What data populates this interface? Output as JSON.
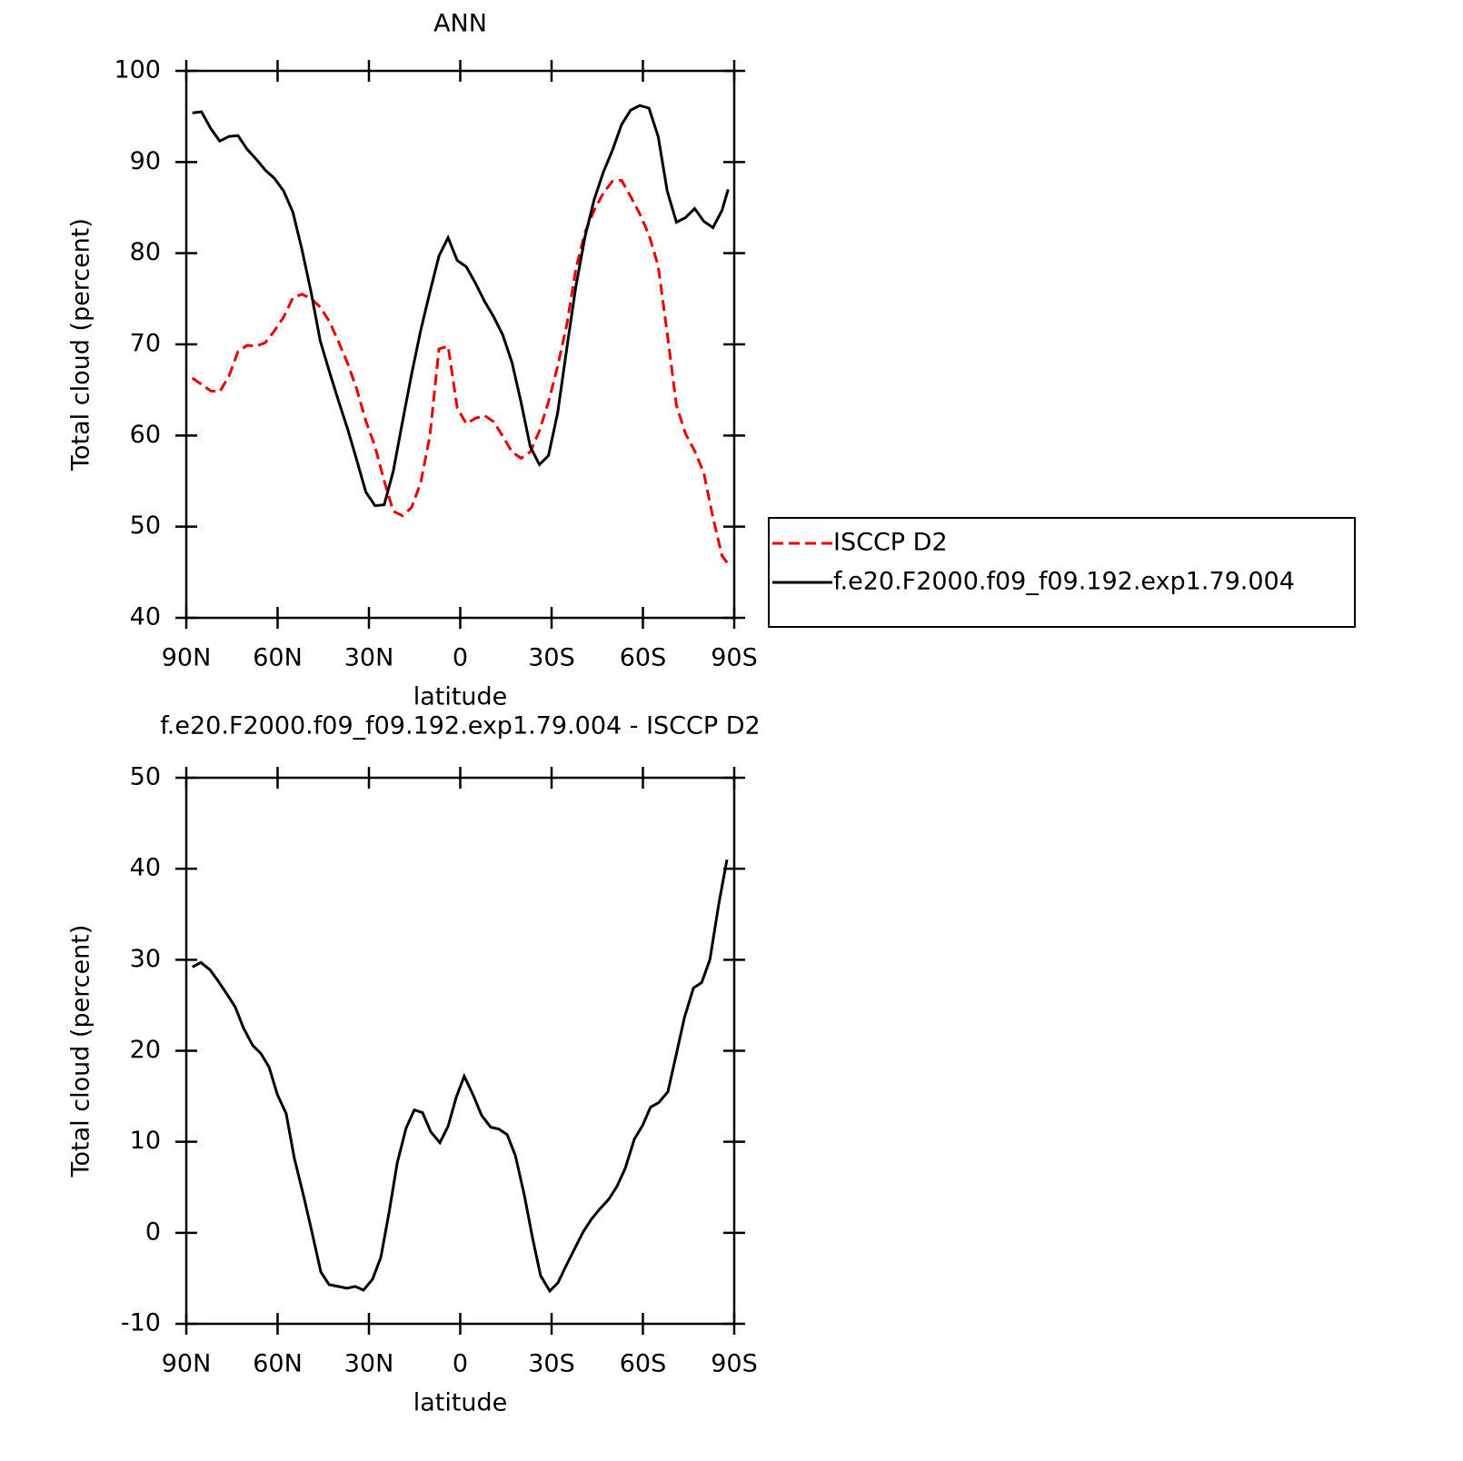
{
  "chart_data": [
    {
      "type": "line",
      "title": "ANN",
      "xlabel": "latitude",
      "ylabel": "Total cloud (percent)",
      "xlim": [
        90,
        -90
      ],
      "ylim": [
        40,
        100
      ],
      "xticks": [
        {
          "value": 90,
          "label": "90N"
        },
        {
          "value": 60,
          "label": "60N"
        },
        {
          "value": 30,
          "label": "30N"
        },
        0,
        {
          "value": -30,
          "label": "30S"
        },
        {
          "value": -60,
          "label": "60S"
        },
        {
          "value": -90,
          "label": "90S"
        }
      ],
      "yticks": [
        40,
        50,
        60,
        70,
        80,
        90,
        100
      ],
      "legend": "right",
      "x": [
        88,
        85,
        82,
        79,
        76,
        73,
        70,
        67,
        64,
        61,
        58,
        55,
        52,
        49,
        46,
        43,
        40,
        37,
        34,
        31,
        28,
        25,
        22,
        19,
        16,
        13,
        10,
        7,
        4,
        1,
        -2,
        -5,
        -8,
        -11,
        -14,
        -17,
        -20,
        -23,
        -26,
        -29,
        -32,
        -35,
        -38,
        -41,
        -44,
        -47,
        -50,
        -53,
        -56,
        -59,
        -62,
        -65,
        -68,
        -71,
        -74,
        -77,
        -80,
        -83,
        -86,
        -88
      ],
      "series": [
        {
          "name": "ISCCP D2",
          "color": "#e60000",
          "linestyle": "dashed",
          "values": [
            66.3,
            65.6,
            64.9,
            64.8,
            66.5,
            69.2,
            69.9,
            69.8,
            70.2,
            71.5,
            73.0,
            75.1,
            75.5,
            75.0,
            74.1,
            72.5,
            70.3,
            67.9,
            65.1,
            61.6,
            58.8,
            55.0,
            51.7,
            51.2,
            52.1,
            54.8,
            59.9,
            69.5,
            69.8,
            63.0,
            61.3,
            61.9,
            62.2,
            61.5,
            59.9,
            58.2,
            57.5,
            58.2,
            60.5,
            63.7,
            67.6,
            72.2,
            78.3,
            82.3,
            84.7,
            86.6,
            87.9,
            88.0,
            86.2,
            84.3,
            82.0,
            78.6,
            71.2,
            63.3,
            60.2,
            58.3,
            55.9,
            51.0,
            46.8,
            45.9
          ]
        },
        {
          "name": "f.e20.F2000.f09_f09.192.exp1.79.004",
          "color": "#000000",
          "linestyle": "solid",
          "values": [
            95.4,
            95.5,
            93.7,
            92.3,
            92.8,
            92.9,
            91.4,
            90.3,
            89.1,
            88.2,
            86.8,
            84.5,
            80.4,
            75.7,
            70.4,
            67.0,
            63.8,
            60.7,
            57.3,
            53.8,
            52.3,
            52.4,
            56.1,
            61.5,
            66.7,
            71.5,
            75.7,
            79.7,
            81.7,
            79.2,
            78.5,
            76.7,
            74.7,
            73.0,
            71.0,
            68.0,
            63.6,
            58.8,
            56.8,
            57.8,
            62.5,
            69.6,
            76.4,
            81.8,
            85.9,
            88.9,
            91.3,
            94.1,
            95.7,
            96.2,
            95.9,
            92.8,
            86.8,
            83.4,
            83.9,
            84.9,
            83.5,
            82.8,
            84.7,
            87.0
          ]
        }
      ]
    },
    {
      "type": "line",
      "title": "f.e20.F2000.f09_f09.192.exp1.79.004 - ISCCP D2",
      "xlabel": "latitude",
      "ylabel": "Total cloud (percent)",
      "xlim": [
        90,
        -90
      ],
      "ylim": [
        -10,
        50
      ],
      "xticks": [
        {
          "value": 90,
          "label": "90N"
        },
        {
          "value": 60,
          "label": "60N"
        },
        {
          "value": 30,
          "label": "30N"
        },
        0,
        {
          "value": -30,
          "label": "30S"
        },
        {
          "value": -60,
          "label": "60S"
        },
        {
          "value": -90,
          "label": "90S"
        }
      ],
      "yticks": [
        -10,
        0,
        10,
        20,
        30,
        40,
        50
      ],
      "color": "#000000",
      "x": [
        88,
        85.2,
        82.2,
        79.6,
        76.6,
        73.9,
        71.2,
        68.2,
        65.5,
        62.8,
        60.1,
        57.2,
        54.5,
        51.5,
        48.8,
        45.8,
        43.1,
        40.1,
        37.2,
        34.5,
        31.8,
        28.8,
        26.1,
        23.4,
        20.7,
        17.8,
        15.1,
        12.4,
        9.7,
        6.7,
        4,
        1.3,
        -1.3,
        -4.3,
        -7,
        -10,
        -12.7,
        -15.4,
        -18.1,
        -21,
        -23.7,
        -26.4,
        -29.4,
        -32.1,
        -34.8,
        -37.5,
        -40.4,
        -43.1,
        -45.8,
        -48.8,
        -51.5,
        -54.2,
        -57.2,
        -59.9,
        -62.5,
        -65.2,
        -68.2,
        -70.9,
        -73.6,
        -76.6,
        -79.3,
        -82,
        -85,
        -87.6
      ],
      "values": [
        29.2,
        29.7,
        28.9,
        27.7,
        26.2,
        24.8,
        22.5,
        20.6,
        19.7,
        18.2,
        15.2,
        13.1,
        8.2,
        4.1,
        0.2,
        -4.3,
        -5.7,
        -5.9,
        -6.1,
        -5.9,
        -6.3,
        -5.1,
        -2.7,
        2.2,
        7.7,
        11.5,
        13.5,
        13.2,
        11.1,
        9.9,
        11.7,
        14.9,
        17.2,
        15.1,
        12.9,
        11.6,
        11.4,
        10.8,
        8.5,
        4.2,
        -0.5,
        -4.7,
        -6.4,
        -5.5,
        -3.6,
        -1.8,
        0.1,
        1.5,
        2.6,
        3.7,
        5.1,
        7.1,
        10.3,
        11.8,
        13.8,
        14.3,
        15.5,
        19.5,
        23.6,
        26.9,
        27.5,
        30.0,
        36.3,
        41.0
      ]
    }
  ]
}
